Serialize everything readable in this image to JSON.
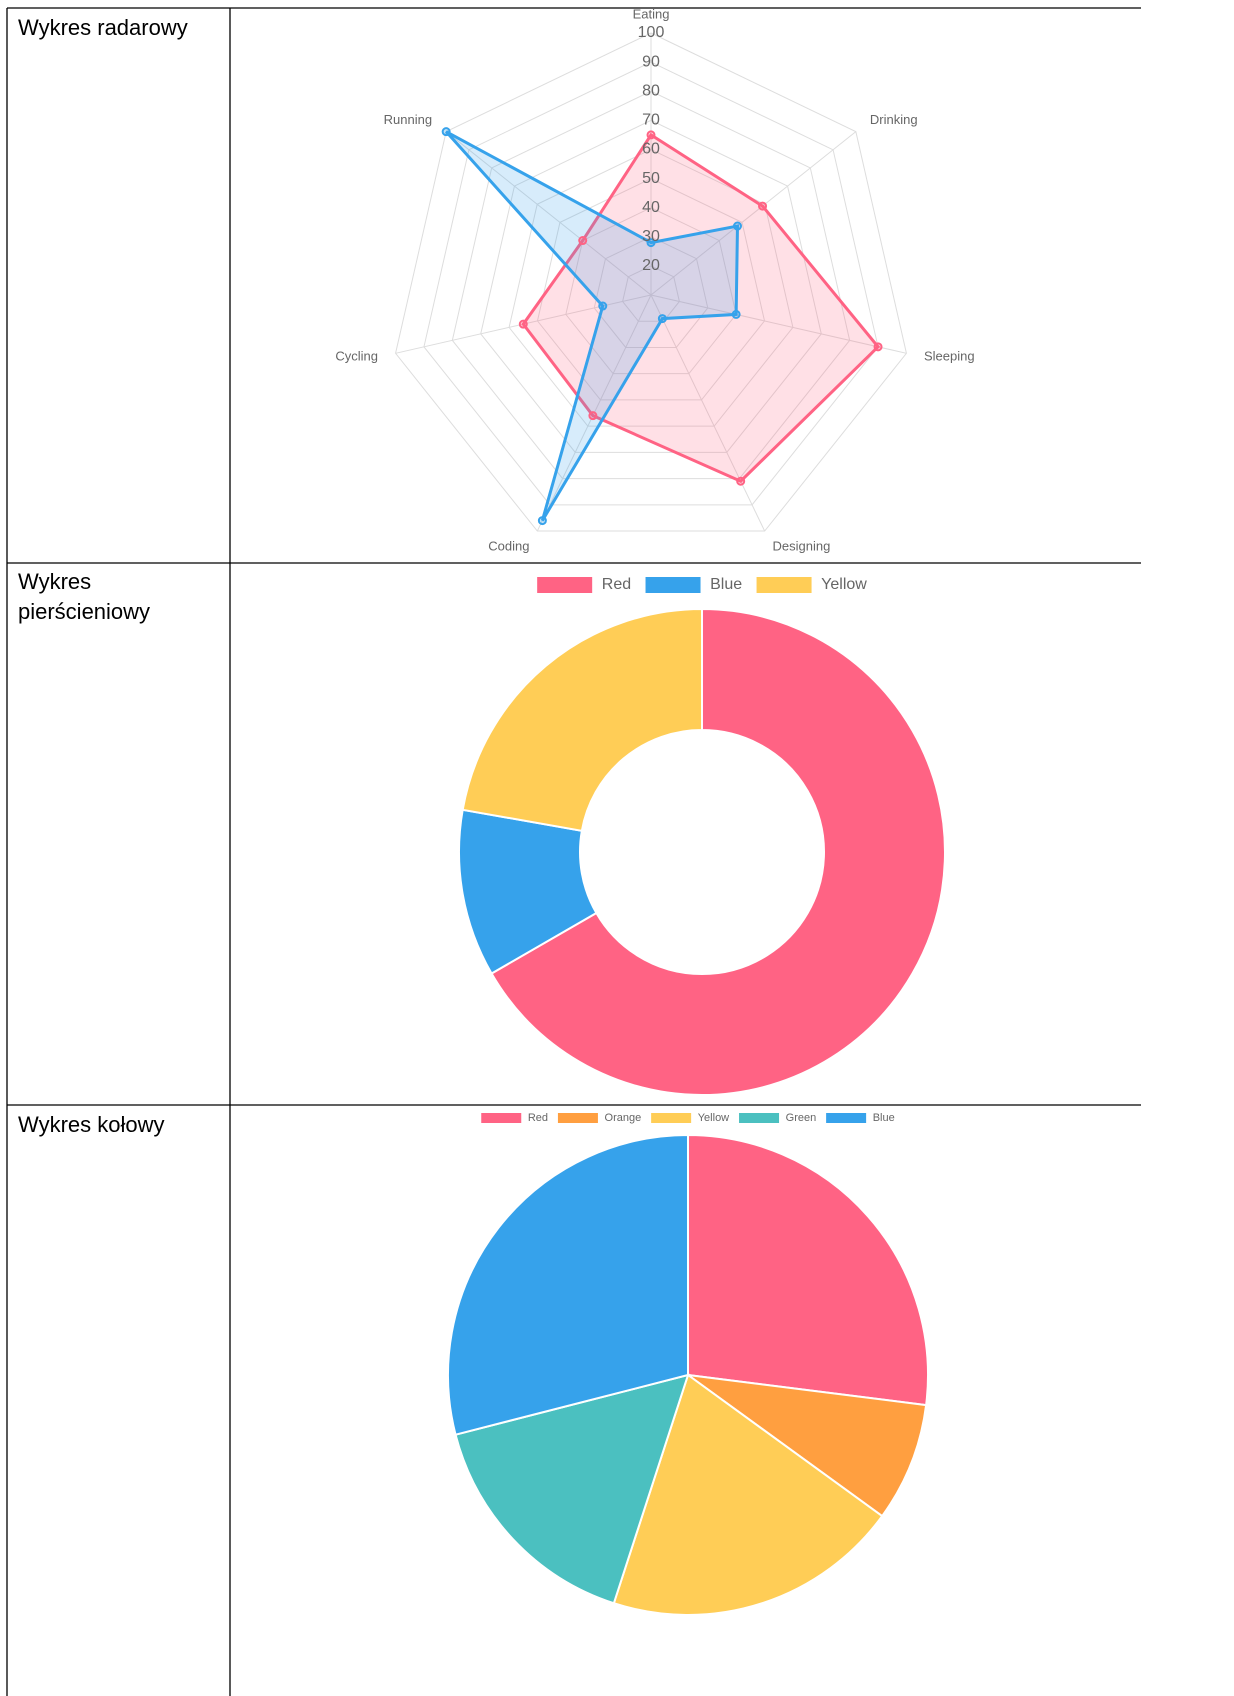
{
  "table": {
    "rows": [
      "Wykres radarowy",
      "Wykres pierścieniowy",
      "Wykres kołowy"
    ]
  },
  "chart_data": [
    {
      "type": "radar",
      "categories": [
        "Eating",
        "Drinking",
        "Sleeping",
        "Designing",
        "Coding",
        "Cycling",
        "Running"
      ],
      "series": [
        {
          "color": "#ff6384",
          "values": [
            65,
            59,
            90,
            81,
            56,
            55,
            40
          ]
        },
        {
          "color": "#36a2eb",
          "values": [
            28,
            48,
            40,
            19,
            96,
            27,
            100
          ]
        }
      ],
      "rlim": [
        10,
        100
      ],
      "rticks": [
        20,
        30,
        40,
        50,
        60,
        70,
        80,
        90,
        100
      ]
    },
    {
      "type": "doughnut",
      "categories": [
        "Red",
        "Blue",
        "Yellow"
      ],
      "values": [
        300,
        50,
        100
      ],
      "colors": [
        "#ff6384",
        "#36a2eb",
        "#ffcd56"
      ],
      "legend": "top"
    },
    {
      "type": "pie",
      "categories": [
        "Red",
        "Orange",
        "Yellow",
        "Green",
        "Blue"
      ],
      "values": [
        27,
        8,
        20,
        16,
        29
      ],
      "colors": [
        "#ff6384",
        "#ff9f40",
        "#ffcd56",
        "#4bc0c0",
        "#36a2eb"
      ],
      "legend": "top"
    }
  ]
}
